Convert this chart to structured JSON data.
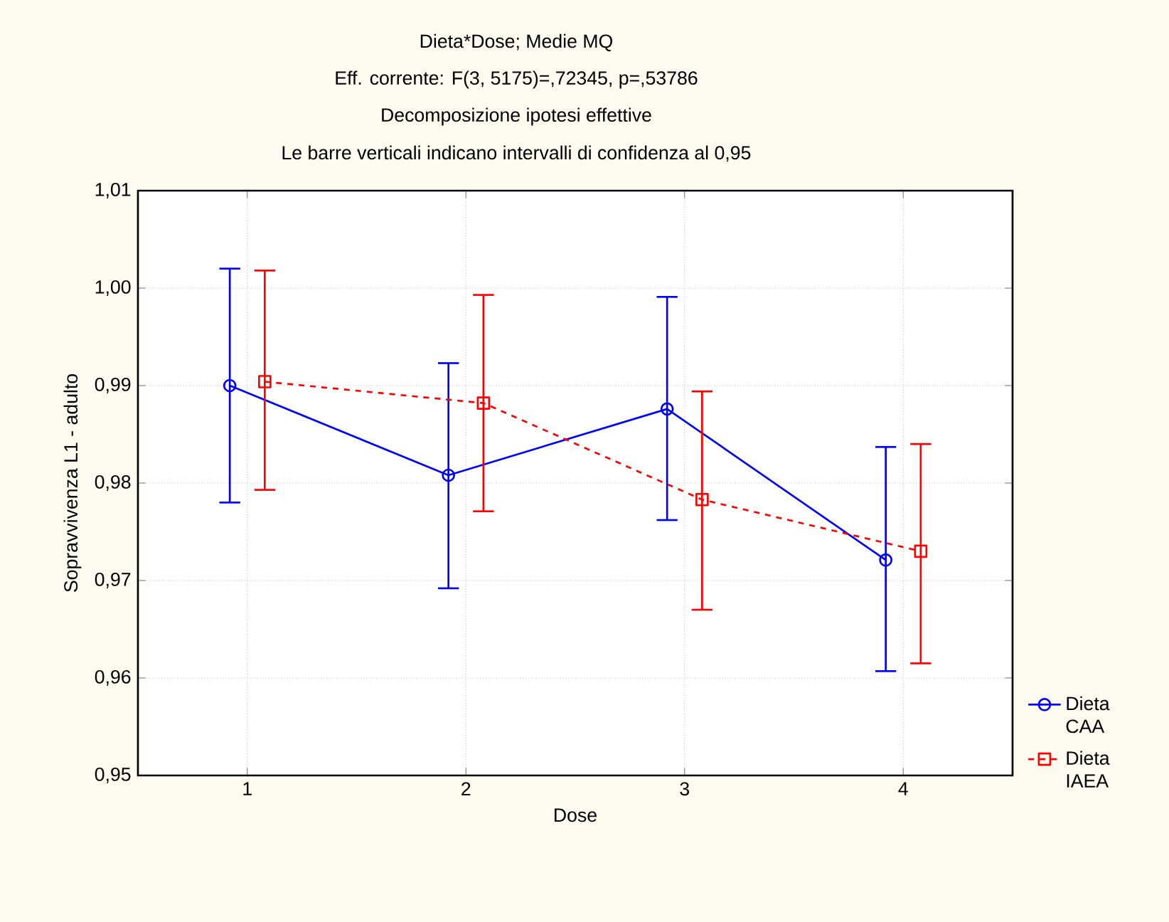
{
  "chart_data": {
    "type": "line",
    "title": "Dieta*Dose; Medie MQ",
    "subtitle": "Eff. corrente:   F(3, 5175)=,72345, p=,53786",
    "annotations": [
      "Decomposizione ipotesi effettive",
      "Le barre verticali indicano intervalli di confidenza al 0,95"
    ],
    "xlabel": "Dose",
    "ylabel": "Sopravvivenza L1 - adulto",
    "categories": [
      "1",
      "2",
      "3",
      "4"
    ],
    "series": [
      {
        "name": "Dieta CAA",
        "color": "#0000ff",
        "marker": "circle",
        "line_style": "solid",
        "values": [
          0.99,
          0.9808,
          0.9876,
          0.9721
        ],
        "errors": [
          [
            0.978,
            1.002
          ],
          [
            0.9692,
            0.9923
          ],
          [
            0.9762,
            0.9991
          ],
          [
            0.9607,
            0.9837
          ]
        ]
      },
      {
        "name": "Dieta IAEA",
        "color": "#ff0000",
        "marker": "square",
        "line_style": "dashed",
        "values": [
          0.9904,
          0.9882,
          0.9783,
          0.973
        ],
        "errors": [
          [
            0.9793,
            1.0018
          ],
          [
            0.9771,
            0.9993
          ],
          [
            0.967,
            0.9894
          ],
          [
            0.9615,
            0.984
          ]
        ]
      }
    ],
    "ylim": [
      0.95,
      1.01
    ],
    "yticks": [
      {
        "value": 0.95,
        "label": "0,95"
      },
      {
        "value": 0.96,
        "label": "0,96"
      },
      {
        "value": 0.97,
        "label": "0,97"
      },
      {
        "value": 0.98,
        "label": "0,98"
      },
      {
        "value": 0.99,
        "label": "0,99"
      },
      {
        "value": 1.0,
        "label": "1,00"
      },
      {
        "value": 1.01,
        "label": "1,01"
      }
    ],
    "grid": true,
    "legend": "bottom right"
  }
}
